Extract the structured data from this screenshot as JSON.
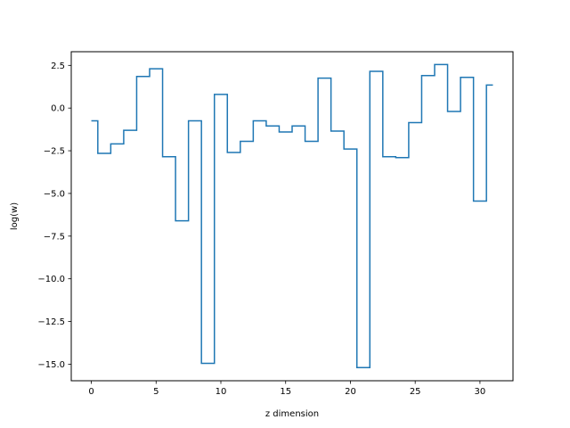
{
  "chart_data": {
    "type": "line",
    "step": "mid",
    "title": "",
    "xlabel": "z dimension",
    "ylabel": "log(w)",
    "xlim": [
      -1.55,
      32.55
    ],
    "ylim": [
      -15.97,
      3.3
    ],
    "xticks": [
      0,
      5,
      10,
      15,
      20,
      25,
      30
    ],
    "xtick_labels": [
      "0",
      "5",
      "10",
      "15",
      "20",
      "25",
      "30"
    ],
    "yticks": [
      2.5,
      0.0,
      -2.5,
      -5.0,
      -7.5,
      -10.0,
      -12.5,
      -15.0
    ],
    "ytick_labels": [
      "2.5",
      "0.0",
      "−2.5",
      "−5.0",
      "−7.5",
      "−10.0",
      "−12.5",
      "−15.0"
    ],
    "grid": false,
    "line_color": "#1f77b4",
    "series": [
      {
        "x": [
          0,
          1,
          2,
          3,
          4,
          5,
          6,
          7,
          8,
          9,
          10,
          11,
          12,
          13,
          14,
          15,
          16,
          17,
          18,
          19,
          20,
          21,
          22,
          23,
          24,
          25,
          26,
          27,
          28,
          29,
          30,
          31
        ],
        "values": [
          -0.75,
          -2.65,
          -2.1,
          -1.3,
          1.85,
          2.3,
          -2.85,
          -6.6,
          -0.75,
          -14.95,
          0.8,
          -2.6,
          -1.95,
          -0.75,
          -1.05,
          -1.4,
          -1.05,
          -1.95,
          1.75,
          -1.35,
          -2.4,
          -15.2,
          2.15,
          -2.85,
          -2.9,
          -0.85,
          1.9,
          2.55,
          -0.2,
          1.8,
          -5.45,
          1.35
        ]
      }
    ]
  }
}
